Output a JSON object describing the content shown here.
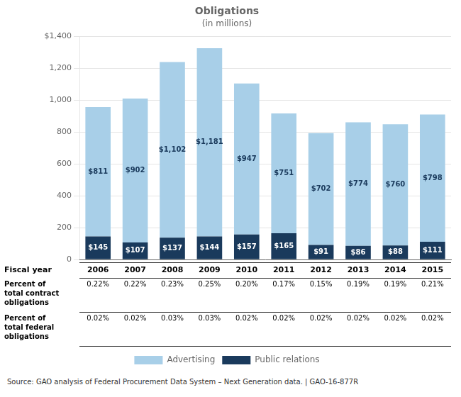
{
  "chart_data": {
    "type": "bar",
    "title": "Obligations",
    "subtitle": "(in millions)",
    "xlabel": "Fiscal year",
    "categories": [
      "2006",
      "2007",
      "2008",
      "2009",
      "2010",
      "2011",
      "2012",
      "2013",
      "2014",
      "2015"
    ],
    "series": [
      {
        "name": "Public relations",
        "color": "#1a3a5c",
        "values": [
          145,
          107,
          137,
          144,
          157,
          165,
          91,
          86,
          88,
          111
        ],
        "value_labels": [
          "$145",
          "$107",
          "$137",
          "$144",
          "$157",
          "$165",
          "$91",
          "$86",
          "$88",
          "$111"
        ]
      },
      {
        "name": "Advertising",
        "color": "#a8cfe8",
        "values": [
          811,
          902,
          1102,
          1181,
          947,
          751,
          702,
          774,
          760,
          798
        ],
        "value_labels": [
          "$811",
          "$902",
          "$1,102",
          "$1,181",
          "$947",
          "$751",
          "$702",
          "$774",
          "$760",
          "$798"
        ]
      }
    ],
    "stacked": true,
    "data_labels": true,
    "ylim": [
      0,
      1400
    ],
    "yticks": [
      0,
      200,
      400,
      600,
      800,
      {
        "value": 1000,
        "label": "1,000"
      },
      {
        "value": 1200,
        "label": "1,200"
      },
      {
        "value": 1400,
        "label": "$1,400"
      }
    ],
    "grid": true,
    "legend": "bottom",
    "table": [
      {
        "label": "Percent of\ntotal contract\nobligations",
        "values": [
          0.22,
          0.22,
          0.23,
          0.25,
          0.2,
          0.17,
          0.15,
          0.19,
          0.19,
          0.21
        ],
        "value_labels": [
          "0.22%",
          "0.22%",
          "0.23%",
          "0.25%",
          "0.20%",
          "0.17%",
          "0.15%",
          "0.19%",
          "0.19%",
          "0.21%"
        ]
      },
      {
        "label": "Percent of\ntotal federal\nobligations",
        "values": [
          0.02,
          0.02,
          0.03,
          0.03,
          0.02,
          0.02,
          0.02,
          0.02,
          0.02,
          0.02
        ],
        "value_labels": [
          "0.02%",
          "0.02%",
          "0.03%",
          "0.03%",
          "0.02%",
          "0.02%",
          "0.02%",
          "0.02%",
          "0.02%",
          "0.02%"
        ]
      }
    ],
    "source": "Source: GAO analysis of Federal Procurement Data System – Next Generation data.  |  GAO-16-877R"
  }
}
